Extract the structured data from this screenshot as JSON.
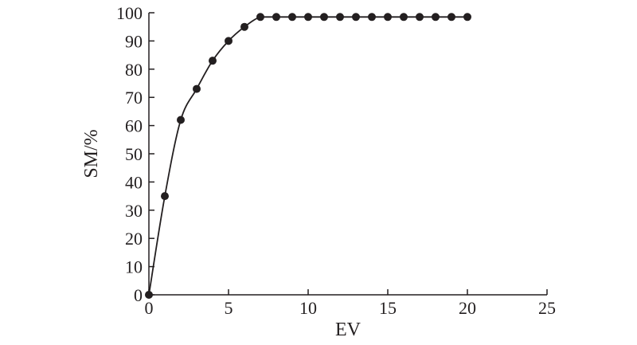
{
  "chart_data": {
    "type": "line",
    "title": "",
    "xlabel": "EV",
    "ylabel": "SM/%",
    "xlim": [
      0,
      25
    ],
    "ylim": [
      0,
      100
    ],
    "xticks": [
      0,
      5,
      10,
      15,
      20,
      25
    ],
    "yticks": [
      0,
      10,
      20,
      30,
      40,
      50,
      60,
      70,
      80,
      90,
      100
    ],
    "grid": false,
    "legend": "none",
    "line_color": "#231f20",
    "marker": "filled-circle",
    "series": [
      {
        "x": [
          0,
          1,
          2,
          3,
          4,
          5,
          6,
          7,
          8,
          9,
          10,
          11,
          12,
          13,
          14,
          15,
          16,
          17,
          18,
          19,
          20
        ],
        "y": [
          0,
          35,
          62,
          73,
          83,
          90,
          95,
          98.5,
          98.5,
          98.5,
          98.5,
          98.5,
          98.5,
          98.5,
          98.5,
          98.5,
          98.5,
          98.5,
          98.5,
          98.5,
          98.5
        ]
      }
    ]
  }
}
